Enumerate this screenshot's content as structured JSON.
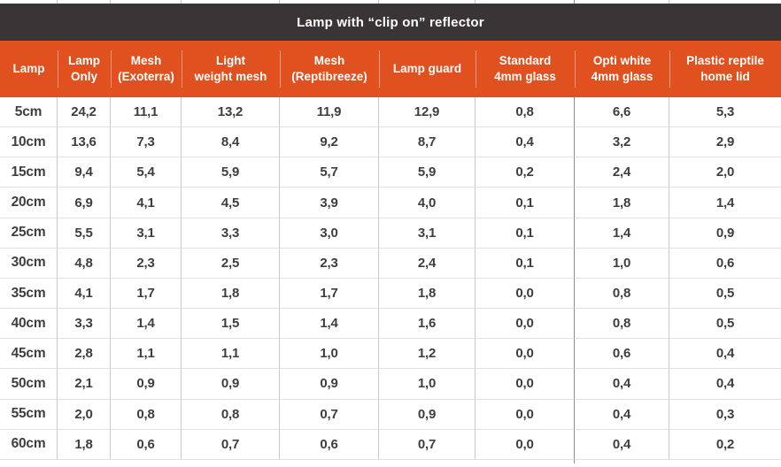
{
  "title": "Lamp with “clip on” reflector",
  "colors": {
    "header_orange": "#e1501f",
    "title_bar_dark": "#393435",
    "text_dark": "#3f3e3e",
    "grid_line_vertical": "#c9c9c9",
    "grid_line_horizontal": "#e2e2e2",
    "grid_line_dark_divider": "#8c8c8c"
  },
  "chart_data": {
    "type": "table",
    "title": "Lamp with “clip on” reflector",
    "decimal_separator": ",",
    "columns": [
      {
        "id": "lamp",
        "label": "Lamp",
        "display": "Lamp"
      },
      {
        "id": "lamp-only",
        "label": "Lamp Only",
        "display": "Lamp\nOnly"
      },
      {
        "id": "mesh-exoterra",
        "label": "Mesh (Exoterra)",
        "display": "Mesh\n(Exoterra)"
      },
      {
        "id": "light-weight-mesh",
        "label": "Light weight mesh",
        "display": "Light\nweight mesh"
      },
      {
        "id": "mesh-reptibreeze",
        "label": "Mesh (Reptibreeze)",
        "display": "Mesh\n(Reptibreeze)"
      },
      {
        "id": "lamp-guard",
        "label": "Lamp guard",
        "display": "Lamp guard"
      },
      {
        "id": "standard-4mm-glass",
        "label": "Standard 4mm glass",
        "display": "Standard\n4mm glass"
      },
      {
        "id": "opti-white-4mm-glass",
        "label": "Opti white 4mm glass",
        "display": "Opti white\n4mm glass"
      },
      {
        "id": "plastic-reptile-home-lid",
        "label": "Plastic reptile home lid",
        "display": "Plastic reptile\nhome lid"
      }
    ],
    "rows": [
      {
        "label": "5cm",
        "values": [
          "24,2",
          "11,1",
          "13,2",
          "11,9",
          "12,9",
          "0,8",
          "6,6",
          "5,3"
        ]
      },
      {
        "label": "10cm",
        "values": [
          "13,6",
          "7,3",
          "8,4",
          "9,2",
          "8,7",
          "0,4",
          "3,2",
          "2,9"
        ]
      },
      {
        "label": "15cm",
        "values": [
          "9,4",
          "5,4",
          "5,9",
          "5,7",
          "5,9",
          "0,2",
          "2,4",
          "2,0"
        ]
      },
      {
        "label": "20cm",
        "values": [
          "6,9",
          "4,1",
          "4,5",
          "3,9",
          "4,0",
          "0,1",
          "1,8",
          "1,4"
        ]
      },
      {
        "label": "25cm",
        "values": [
          "5,5",
          "3,1",
          "3,3",
          "3,0",
          "3,1",
          "0,1",
          "1,4",
          "0,9"
        ]
      },
      {
        "label": "30cm",
        "values": [
          "4,8",
          "2,3",
          "2,5",
          "2,3",
          "2,4",
          "0,1",
          "1,0",
          "0,6"
        ]
      },
      {
        "label": "35cm",
        "values": [
          "4,1",
          "1,7",
          "1,8",
          "1,7",
          "1,8",
          "0,0",
          "0,8",
          "0,5"
        ]
      },
      {
        "label": "40cm",
        "values": [
          "3,3",
          "1,4",
          "1,5",
          "1,4",
          "1,6",
          "0,0",
          "0,8",
          "0,5"
        ]
      },
      {
        "label": "45cm",
        "values": [
          "2,8",
          "1,1",
          "1,1",
          "1,0",
          "1,2",
          "0,0",
          "0,6",
          "0,4"
        ]
      },
      {
        "label": "50cm",
        "values": [
          "2,1",
          "0,9",
          "0,9",
          "0,9",
          "1,0",
          "0,0",
          "0,4",
          "0,4"
        ]
      },
      {
        "label": "55cm",
        "values": [
          "2,0",
          "0,8",
          "0,8",
          "0,7",
          "0,9",
          "0,0",
          "0,4",
          "0,3"
        ]
      },
      {
        "label": "60cm",
        "values": [
          "1,8",
          "0,6",
          "0,7",
          "0,6",
          "0,7",
          "0,0",
          "0,4",
          "0,2"
        ]
      }
    ]
  }
}
